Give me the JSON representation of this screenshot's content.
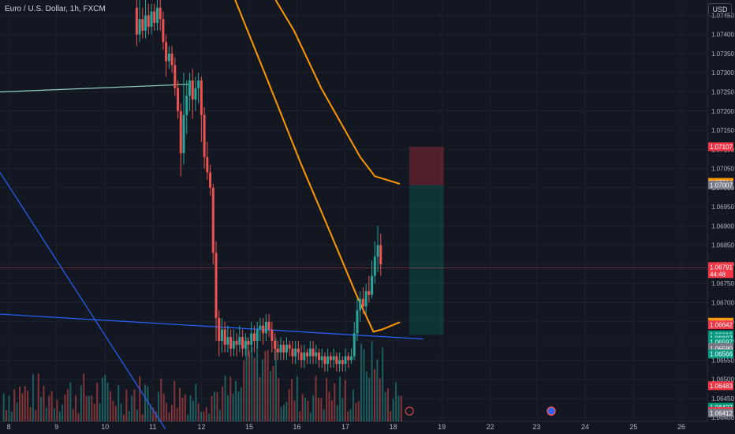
{
  "header": {
    "symbol_title": "Euro / U.S. Dollar, 1h, FXCM",
    "currency_button": "USD"
  },
  "colors": {
    "background": "#131722",
    "grid": "#1e222d",
    "up": "#26a69a",
    "down": "#ef5350",
    "ma": "#ff9800",
    "trendline_blue": "#2962ff",
    "trendline_green": "#8fd1b8",
    "price_line": "#ef5350"
  },
  "chart_data": {
    "type": "candlestick",
    "title": "Euro / U.S. Dollar, 1h, FXCM",
    "x_tick_labels": [
      "8",
      "9",
      "10",
      "11",
      "12",
      "15",
      "16",
      "17",
      "18",
      "19",
      "22",
      "23",
      "24",
      "25",
      "26"
    ],
    "y_tick_labels": [
      "1.07450",
      "1.07400",
      "1.07350",
      "1.07300",
      "1.07250",
      "1.07200",
      "1.07150",
      "1.07100",
      "1.07050",
      "1.07000",
      "1.06950",
      "1.06900",
      "1.06850",
      "1.06800",
      "1.06750",
      "1.06700",
      "1.06650",
      "1.06600",
      "1.06550",
      "1.06500",
      "1.06450",
      "1.06400"
    ],
    "ylim": [
      1.0639,
      1.0749
    ],
    "grid": true,
    "current_price": {
      "value": "1.06791",
      "countdown": "44:48"
    },
    "price_tags": [
      {
        "label": "1.07107",
        "value": 1.07107,
        "color": "#f23645"
      },
      {
        "label": "1.07014",
        "value": 1.07014,
        "color": "#ff9800"
      },
      {
        "label": "1.07007",
        "value": 1.07007,
        "color": "#787b86"
      },
      {
        "label": "1.06649",
        "value": 1.06649,
        "color": "#ff9800"
      },
      {
        "label": "1.06642",
        "value": 1.06642,
        "color": "#f23645"
      },
      {
        "label": "1.06616",
        "value": 1.06616,
        "color": "#089981"
      },
      {
        "label": "1.06607",
        "value": 1.06607,
        "color": "#089981"
      },
      {
        "label": "1.06597",
        "value": 1.06597,
        "color": "#089981"
      },
      {
        "label": "1.06583",
        "value": 1.06583,
        "color": "#787b86"
      },
      {
        "label": "1.06580",
        "value": 1.0658,
        "color": "#787b86"
      },
      {
        "label": "1.06566",
        "value": 1.06566,
        "color": "#089981"
      },
      {
        "label": "1.06483",
        "value": 1.06483,
        "color": "#f23645"
      },
      {
        "label": "1.06427",
        "value": 1.06427,
        "color": "#089981"
      },
      {
        "label": "1.06416",
        "value": 1.06416,
        "color": "#f23645"
      },
      {
        "label": "1.06412",
        "value": 1.06412,
        "color": "#787b86"
      }
    ],
    "position_tool": {
      "entry": 1.07007,
      "stop": 1.07107,
      "target": 1.06616
    },
    "moving_averages": [
      {
        "points": [
          [
            0.375,
            1.0749
          ],
          [
            0.4,
            1.0741
          ],
          [
            0.437,
            1.0726
          ],
          [
            0.49,
            1.0708
          ],
          [
            0.51,
            1.0703
          ],
          [
            0.544,
            1.0701
          ]
        ]
      },
      {
        "points": [
          [
            0.32,
            1.0749
          ],
          [
            0.36,
            1.073
          ],
          [
            0.41,
            1.0706
          ],
          [
            0.45,
            1.0688
          ],
          [
            0.485,
            1.0672
          ],
          [
            0.508,
            1.06624
          ],
          [
            0.52,
            1.0663
          ],
          [
            0.544,
            1.06649
          ]
        ]
      }
    ],
    "trendlines": [
      {
        "color": "#2962ff",
        "points": [
          [
            0,
            1.0667
          ],
          [
            0.576,
            1.06605
          ]
        ]
      },
      {
        "color": "#2962ff",
        "points": [
          [
            0,
            1.0704
          ],
          [
            0.225,
            1.0637
          ]
        ]
      },
      {
        "color": "#8fd1b8",
        "points": [
          [
            0,
            1.0725
          ],
          [
            0.258,
            1.0727
          ]
        ]
      }
    ],
    "candles": [
      [
        0.186,
        1.0747,
        1.074,
        1.0749,
        1.0737
      ],
      [
        0.19,
        1.074,
        1.0744,
        1.0749,
        1.0738
      ],
      [
        0.194,
        1.0744,
        1.0741,
        1.0747,
        1.0739
      ],
      [
        0.198,
        1.0741,
        1.0745,
        1.0749,
        1.0739
      ],
      [
        0.202,
        1.0745,
        1.0742,
        1.0748,
        1.074
      ],
      [
        0.206,
        1.0742,
        1.0746,
        1.0748,
        1.074
      ],
      [
        0.21,
        1.0746,
        1.0743,
        1.0748,
        1.0741
      ],
      [
        0.214,
        1.0743,
        1.0747,
        1.0749,
        1.0741
      ],
      [
        0.218,
        1.0747,
        1.0744,
        1.0749,
        1.0741
      ],
      [
        0.222,
        1.0744,
        1.0738,
        1.0746,
        1.0736
      ],
      [
        0.226,
        1.0738,
        1.0733,
        1.074,
        1.0729
      ],
      [
        0.23,
        1.0733,
        1.0735,
        1.0737,
        1.0731
      ],
      [
        0.234,
        1.0735,
        1.0732,
        1.0737,
        1.073
      ],
      [
        0.238,
        1.0732,
        1.0726,
        1.0734,
        1.0724
      ],
      [
        0.242,
        1.0726,
        1.072,
        1.0728,
        1.0718
      ],
      [
        0.246,
        1.072,
        1.0709,
        1.0722,
        1.0703
      ],
      [
        0.25,
        1.0709,
        1.0719,
        1.073,
        1.0706
      ],
      [
        0.254,
        1.0719,
        1.0724,
        1.0728,
        1.0714
      ],
      [
        0.258,
        1.0724,
        1.0728,
        1.073,
        1.072
      ],
      [
        0.262,
        1.0728,
        1.0723,
        1.0731,
        1.0718
      ],
      [
        0.266,
        1.0723,
        1.0726,
        1.0729,
        1.072
      ],
      [
        0.27,
        1.0726,
        1.0728,
        1.073,
        1.0722
      ],
      [
        0.274,
        1.0728,
        1.0719,
        1.0729,
        1.0712
      ],
      [
        0.278,
        1.0719,
        1.0708,
        1.0721,
        1.0705
      ],
      [
        0.282,
        1.0708,
        1.0704,
        1.0712,
        1.0702
      ],
      [
        0.286,
        1.0704,
        1.07,
        1.0706,
        1.0698
      ],
      [
        0.29,
        1.07,
        1.0683,
        1.0701,
        1.068
      ],
      [
        0.294,
        1.0683,
        1.0666,
        1.0686,
        1.066
      ],
      [
        0.298,
        1.0666,
        1.066,
        1.0668,
        1.0656
      ],
      [
        0.302,
        1.066,
        1.0663,
        1.0666,
        1.0657
      ],
      [
        0.306,
        1.0663,
        1.0659,
        1.0665,
        1.0657
      ],
      [
        0.31,
        1.0659,
        1.0661,
        1.0664,
        1.0657
      ],
      [
        0.314,
        1.0661,
        1.0658,
        1.0663,
        1.0656
      ],
      [
        0.318,
        1.0658,
        1.066,
        1.0663,
        1.0656
      ],
      [
        0.322,
        1.066,
        1.0659,
        1.0662,
        1.0656
      ],
      [
        0.326,
        1.0659,
        1.0661,
        1.0664,
        1.0657
      ],
      [
        0.33,
        1.0661,
        1.0658,
        1.0663,
        1.0656
      ],
      [
        0.334,
        1.0658,
        1.066,
        1.0662,
        1.0656
      ],
      [
        0.338,
        1.066,
        1.0659,
        1.0661,
        1.0656
      ],
      [
        0.342,
        1.0659,
        1.0662,
        1.0665,
        1.0657
      ],
      [
        0.346,
        1.0662,
        1.066,
        1.0664,
        1.0657
      ],
      [
        0.35,
        1.066,
        1.0663,
        1.0665,
        1.0658
      ],
      [
        0.354,
        1.0663,
        1.0664,
        1.0666,
        1.066
      ],
      [
        0.358,
        1.0664,
        1.0662,
        1.0666,
        1.0659
      ],
      [
        0.362,
        1.0662,
        1.0665,
        1.0667,
        1.066
      ],
      [
        0.366,
        1.0665,
        1.0663,
        1.0667,
        1.0661
      ],
      [
        0.37,
        1.0663,
        1.066,
        1.0665,
        1.0657
      ],
      [
        0.374,
        1.066,
        1.0658,
        1.0662,
        1.0655
      ],
      [
        0.378,
        1.0658,
        1.0657,
        1.066,
        1.0655
      ],
      [
        0.382,
        1.0657,
        1.0659,
        1.0661,
        1.0655
      ],
      [
        0.386,
        1.0659,
        1.0657,
        1.066,
        1.0655
      ],
      [
        0.39,
        1.0657,
        1.0659,
        1.0661,
        1.0655
      ],
      [
        0.394,
        1.0659,
        1.0658,
        1.066,
        1.0656
      ],
      [
        0.398,
        1.0658,
        1.0656,
        1.066,
        1.0654
      ],
      [
        0.402,
        1.0656,
        1.0658,
        1.066,
        1.0654
      ],
      [
        0.406,
        1.0658,
        1.0657,
        1.066,
        1.0655
      ],
      [
        0.41,
        1.0657,
        1.0655,
        1.0659,
        1.0653
      ],
      [
        0.414,
        1.0655,
        1.0657,
        1.0659,
        1.0653
      ],
      [
        0.418,
        1.0657,
        1.0656,
        1.0658,
        1.0654
      ],
      [
        0.422,
        1.0656,
        1.0658,
        1.066,
        1.0654
      ],
      [
        0.426,
        1.0658,
        1.0656,
        1.066,
        1.0654
      ],
      [
        0.43,
        1.0656,
        1.0657,
        1.0659,
        1.0654
      ],
      [
        0.434,
        1.0657,
        1.0655,
        1.0658,
        1.0653
      ],
      [
        0.438,
        1.0655,
        1.0656,
        1.0658,
        1.0653
      ],
      [
        0.442,
        1.0656,
        1.0654,
        1.0657,
        1.0652
      ],
      [
        0.446,
        1.0654,
        1.0656,
        1.0658,
        1.0652
      ],
      [
        0.45,
        1.0656,
        1.0655,
        1.0657,
        1.0653
      ],
      [
        0.454,
        1.0655,
        1.0656,
        1.0658,
        1.0653
      ],
      [
        0.458,
        1.0656,
        1.0654,
        1.0657,
        1.0652
      ],
      [
        0.462,
        1.0654,
        1.0655,
        1.0657,
        1.0652
      ],
      [
        0.466,
        1.0655,
        1.0654,
        1.0656,
        1.0652
      ],
      [
        0.47,
        1.0654,
        1.0656,
        1.0658,
        1.0652
      ],
      [
        0.474,
        1.0656,
        1.0655,
        1.0657,
        1.0653
      ],
      [
        0.478,
        1.0655,
        1.0656,
        1.0658,
        1.0654
      ],
      [
        0.482,
        1.0656,
        1.0662,
        1.0665,
        1.0655
      ],
      [
        0.486,
        1.0662,
        1.0668,
        1.0671,
        1.066
      ],
      [
        0.49,
        1.0668,
        1.0671,
        1.0673,
        1.0665
      ],
      [
        0.494,
        1.0671,
        1.0669,
        1.0674,
        1.0667
      ],
      [
        0.498,
        1.0669,
        1.0673,
        1.0675,
        1.0667
      ],
      [
        0.502,
        1.0673,
        1.0672,
        1.0677,
        1.067
      ],
      [
        0.506,
        1.0672,
        1.0677,
        1.0681,
        1.0671
      ],
      [
        0.51,
        1.0677,
        1.0682,
        1.0686,
        1.0675
      ],
      [
        0.514,
        1.0682,
        1.0685,
        1.069,
        1.0678
      ],
      [
        0.518,
        1.0685,
        1.068,
        1.0688,
        1.0677
      ]
    ]
  }
}
